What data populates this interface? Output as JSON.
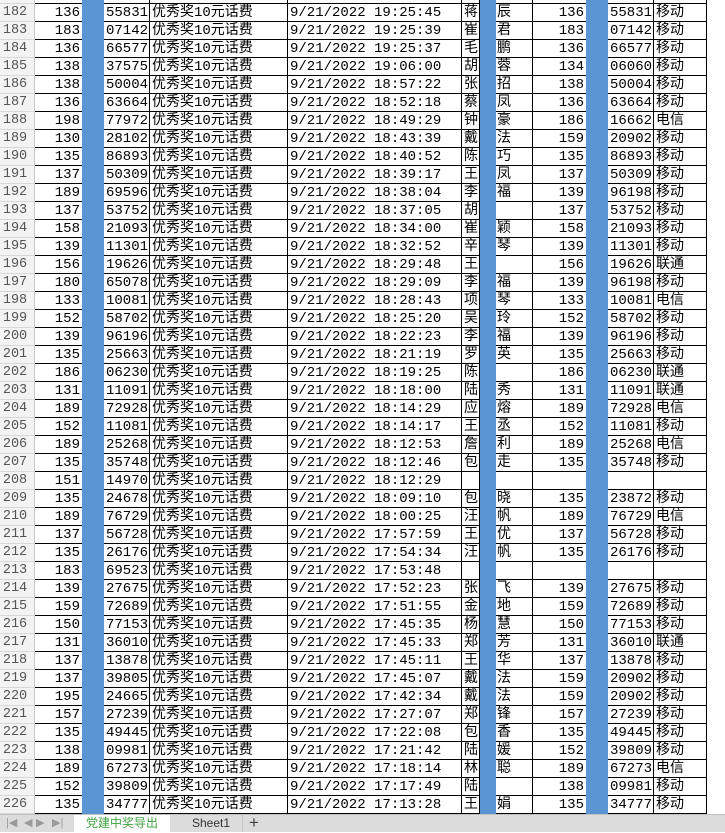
{
  "sheet": {
    "rows": [
      [
        "182",
        "136",
        "55831",
        "优秀奖10元话费",
        "9/21/2022 19:25:45",
        "蒋",
        "辰",
        "136",
        "55831",
        "移动"
      ],
      [
        "183",
        "183",
        "07142",
        "优秀奖10元话费",
        "9/21/2022 19:25:39",
        "崔",
        "君",
        "183",
        "07142",
        "移动"
      ],
      [
        "184",
        "136",
        "66577",
        "优秀奖10元话费",
        "9/21/2022 19:25:37",
        "毛",
        "鹏",
        "136",
        "66577",
        "移动"
      ],
      [
        "185",
        "138",
        "37575",
        "优秀奖10元话费",
        "9/21/2022 19:06:00",
        "胡",
        "蓉",
        "134",
        "06060",
        "移动"
      ],
      [
        "186",
        "138",
        "50004",
        "优秀奖10元话费",
        "9/21/2022 18:57:22",
        "张",
        "招",
        "138",
        "50004",
        "移动"
      ],
      [
        "187",
        "136",
        "63664",
        "优秀奖10元话费",
        "9/21/2022 18:52:18",
        "蔡",
        "凤",
        "136",
        "63664",
        "移动"
      ],
      [
        "188",
        "198",
        "77972",
        "优秀奖10元话费",
        "9/21/2022 18:49:29",
        "钟",
        "豪",
        "186",
        "16662",
        "电信"
      ],
      [
        "189",
        "130",
        "28102",
        "优秀奖10元话费",
        "9/21/2022 18:43:39",
        "戴",
        "法",
        "159",
        "20902",
        "移动"
      ],
      [
        "190",
        "135",
        "86893",
        "优秀奖10元话费",
        "9/21/2022 18:40:52",
        "陈",
        "巧",
        "135",
        "86893",
        "移动"
      ],
      [
        "191",
        "137",
        "50309",
        "优秀奖10元话费",
        "9/21/2022 18:39:17",
        "王",
        "凤",
        "137",
        "50309",
        "移动"
      ],
      [
        "192",
        "189",
        "69596",
        "优秀奖10元话费",
        "9/21/2022 18:38:04",
        "李",
        "福",
        "139",
        "96198",
        "移动"
      ],
      [
        "193",
        "137",
        "53752",
        "优秀奖10元话费",
        "9/21/2022 18:37:05",
        "胡",
        "",
        "137",
        "53752",
        "移动"
      ],
      [
        "194",
        "158",
        "21093",
        "优秀奖10元话费",
        "9/21/2022 18:34:00",
        "崔",
        "颖",
        "158",
        "21093",
        "移动"
      ],
      [
        "195",
        "139",
        "11301",
        "优秀奖10元话费",
        "9/21/2022 18:32:52",
        "辛",
        "琴",
        "139",
        "11301",
        "移动"
      ],
      [
        "196",
        "156",
        "19626",
        "优秀奖10元话费",
        "9/21/2022 18:29:48",
        "王",
        "",
        "156",
        "19626",
        "联通"
      ],
      [
        "197",
        "180",
        "65078",
        "优秀奖10元话费",
        "9/21/2022 18:29:09",
        "李",
        "福",
        "139",
        "96198",
        "移动"
      ],
      [
        "198",
        "133",
        "10081",
        "优秀奖10元话费",
        "9/21/2022 18:28:43",
        "项",
        "琴",
        "133",
        "10081",
        "电信"
      ],
      [
        "199",
        "152",
        "58702",
        "优秀奖10元话费",
        "9/21/2022 18:25:20",
        "吴",
        "玲",
        "152",
        "58702",
        "移动"
      ],
      [
        "200",
        "139",
        "96196",
        "优秀奖10元话费",
        "9/21/2022 18:22:23",
        "李",
        "福",
        "139",
        "96196",
        "移动"
      ],
      [
        "201",
        "135",
        "25663",
        "优秀奖10元话费",
        "9/21/2022 18:21:19",
        "罗",
        "英",
        "135",
        "25663",
        "移动"
      ],
      [
        "202",
        "186",
        "06230",
        "优秀奖10元话费",
        "9/21/2022 18:19:25",
        "陈",
        "",
        "186",
        "06230",
        "联通"
      ],
      [
        "203",
        "131",
        "11091",
        "优秀奖10元话费",
        "9/21/2022 18:18:00",
        "陆",
        "秀",
        "131",
        "11091",
        "联通"
      ],
      [
        "204",
        "189",
        "72928",
        "优秀奖10元话费",
        "9/21/2022 18:14:29",
        "应",
        "熔",
        "189",
        "72928",
        "电信"
      ],
      [
        "205",
        "152",
        "11081",
        "优秀奖10元话费",
        "9/21/2022 18:14:17",
        "王",
        "丞",
        "152",
        "11081",
        "移动"
      ],
      [
        "206",
        "189",
        "25268",
        "优秀奖10元话费",
        "9/21/2022 18:12:53",
        "詹",
        "利",
        "189",
        "25268",
        "电信"
      ],
      [
        "207",
        "135",
        "35748",
        "优秀奖10元话费",
        "9/21/2022 18:12:46",
        "包",
        "走",
        "135",
        "35748",
        "移动"
      ],
      [
        "208",
        "151",
        "14970",
        "优秀奖10元话费",
        "9/21/2022 18:12:29",
        "",
        "",
        "",
        "",
        ""
      ],
      [
        "209",
        "135",
        "24678",
        "优秀奖10元话费",
        "9/21/2022 18:09:10",
        "包",
        "晓",
        "135",
        "23872",
        "移动"
      ],
      [
        "210",
        "189",
        "76729",
        "优秀奖10元话费",
        "9/21/2022 18:00:25",
        "汪",
        "帆",
        "189",
        "76729",
        "电信"
      ],
      [
        "211",
        "137",
        "56728",
        "优秀奖10元话费",
        "9/21/2022 17:57:59",
        "王",
        "优",
        "137",
        "56728",
        "移动"
      ],
      [
        "212",
        "135",
        "26176",
        "优秀奖10元话费",
        "9/21/2022 17:54:34",
        "汪",
        "帆",
        "135",
        "26176",
        "移动"
      ],
      [
        "213",
        "183",
        "69523",
        "优秀奖10元话费",
        "9/21/2022 17:53:48",
        "",
        "",
        "",
        "",
        ""
      ],
      [
        "214",
        "139",
        "27675",
        "优秀奖10元话费",
        "9/21/2022 17:52:23",
        "张",
        "飞",
        "139",
        "27675",
        "移动"
      ],
      [
        "215",
        "159",
        "72689",
        "优秀奖10元话费",
        "9/21/2022 17:51:55",
        "金",
        "地",
        "159",
        "72689",
        "移动"
      ],
      [
        "216",
        "150",
        "77153",
        "优秀奖10元话费",
        "9/21/2022 17:45:35",
        "杨",
        "慧",
        "150",
        "77153",
        "移动"
      ],
      [
        "217",
        "131",
        "36010",
        "优秀奖10元话费",
        "9/21/2022 17:45:33",
        "郑",
        "芳",
        "131",
        "36010",
        "联通"
      ],
      [
        "218",
        "137",
        "13878",
        "优秀奖10元话费",
        "9/21/2022 17:45:11",
        "王",
        "华",
        "137",
        "13878",
        "移动"
      ],
      [
        "219",
        "137",
        "39805",
        "优秀奖10元话费",
        "9/21/2022 17:45:07",
        "戴",
        "法",
        "159",
        "20902",
        "移动"
      ],
      [
        "220",
        "195",
        "24665",
        "优秀奖10元话费",
        "9/21/2022 17:42:34",
        "戴",
        "法",
        "159",
        "20902",
        "移动"
      ],
      [
        "221",
        "157",
        "27239",
        "优秀奖10元话费",
        "9/21/2022 17:27:07",
        "郑",
        "锋",
        "157",
        "27239",
        "移动"
      ],
      [
        "222",
        "135",
        "49445",
        "优秀奖10元话费",
        "9/21/2022 17:22:08",
        "包",
        "香",
        "135",
        "49445",
        "移动"
      ],
      [
        "223",
        "138",
        "09981",
        "优秀奖10元话费",
        "9/21/2022 17:21:42",
        "陆",
        "媛",
        "152",
        "39809",
        "移动"
      ],
      [
        "224",
        "189",
        "67273",
        "优秀奖10元话费",
        "9/21/2022 17:18:14",
        "林",
        "聪",
        "189",
        "67273",
        "电信"
      ],
      [
        "225",
        "152",
        "39809",
        "优秀奖10元话费",
        "9/21/2022 17:17:49",
        "陆",
        "",
        "138",
        "09981",
        "移动"
      ],
      [
        "226",
        "135",
        "34777",
        "优秀奖10元话费",
        "9/21/2022 17:13:28",
        "王",
        "娟",
        "135",
        "34777",
        "移动"
      ]
    ],
    "redaction_color": "#5b96d3"
  },
  "tabs": {
    "active_label": "党建中奖导出",
    "other_label": "Sheet1",
    "add_label": "+",
    "active_color": "#3fa33f"
  }
}
